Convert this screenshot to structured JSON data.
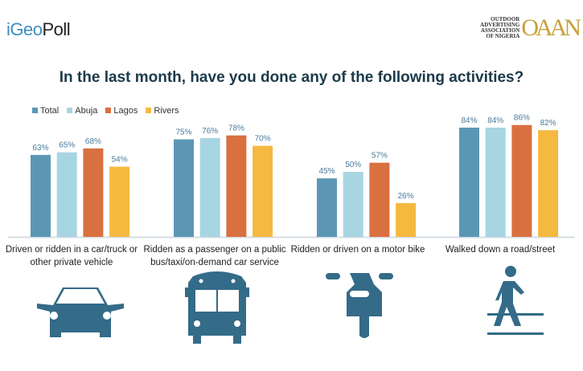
{
  "header": {
    "logo_left": "GeoPoll",
    "logo_right_lines": [
      "OUTDOOR",
      "ADVERTISING",
      "ASSOCIATION",
      "OF NIGERIA"
    ],
    "logo_right_mark": "OAAN"
  },
  "chart_data": {
    "type": "bar",
    "title": "In the last month, have you done any of the following activities?",
    "categories": [
      "Driven or ridden in a car/truck or other private vehicle",
      "Ridden as a passenger on a public bus/taxi/on-demand car service",
      "Ridden or driven on a motor bike",
      "Walked down a road/street"
    ],
    "series": [
      {
        "name": "Total",
        "color": "#5b97b5",
        "values": [
          63,
          75,
          45,
          84
        ]
      },
      {
        "name": "Abuja",
        "color": "#a8d5e2",
        "values": [
          65,
          76,
          50,
          84
        ]
      },
      {
        "name": "Lagos",
        "color": "#d97040",
        "values": [
          68,
          78,
          57,
          86
        ]
      },
      {
        "name": "Rivers",
        "color": "#f5b940",
        "values": [
          54,
          70,
          26,
          82
        ]
      }
    ],
    "value_suffix": "%",
    "ylim": [
      0,
      100
    ],
    "grid": false,
    "legend": "top-left",
    "icons": [
      "car-icon",
      "bus-icon",
      "motorbike-icon",
      "pedestrian-icon"
    ],
    "label_color": "#4a7a99",
    "icon_color": "#346b88"
  }
}
